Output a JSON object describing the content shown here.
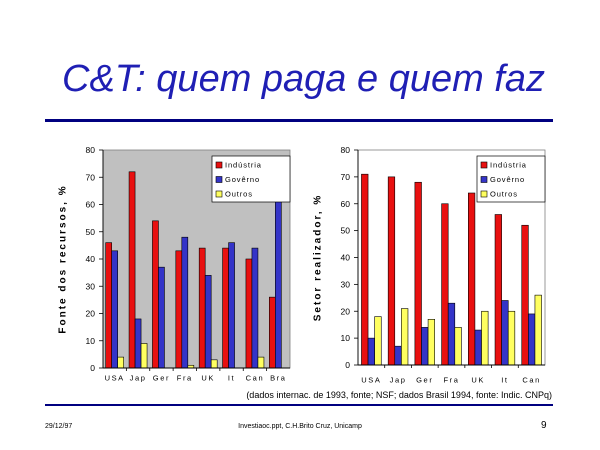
{
  "slide": {
    "title": "C&T: quem paga e quem faz",
    "caption": "(dados internac. de 1993, fonte; NSF; dados Brasil 1994, fonte: Indic. CNPq)",
    "footer": {
      "date": "29/12/97",
      "file": "Investiaoc.ppt, C.H.Brito Cruz, Unicamp",
      "page": "9"
    }
  },
  "colors": {
    "title": "#1f1fb4",
    "rule": "#000080"
  },
  "chart_data": [
    {
      "type": "bar",
      "ylabel": "Fonte dos recursos, %",
      "ylim": [
        0,
        80
      ],
      "yticks": [
        0,
        10,
        20,
        30,
        40,
        50,
        60,
        70,
        80
      ],
      "categories": [
        "USA",
        "Jap",
        "Ger",
        "Fra",
        "UK",
        "It",
        "Can",
        "Bra"
      ],
      "series": [
        {
          "name": "Indústria",
          "color": "#e81010",
          "values": [
            46,
            72,
            54,
            43,
            44,
            44,
            40,
            26
          ]
        },
        {
          "name": "Govêrno",
          "color": "#3434c8",
          "values": [
            43,
            18,
            37,
            48,
            34,
            46,
            44,
            74
          ]
        },
        {
          "name": "Outros",
          "color": "#ffff60",
          "values": [
            4,
            9,
            0,
            1,
            3,
            0,
            4,
            0
          ]
        }
      ],
      "legend": "top-right",
      "grid": false,
      "plot_background": "#c0c0c0"
    },
    {
      "type": "bar",
      "ylabel": "Setor realizador, %",
      "ylim": [
        0,
        80
      ],
      "yticks": [
        0,
        10,
        20,
        30,
        40,
        50,
        60,
        70,
        80
      ],
      "categories": [
        "USA",
        "Jap",
        "Ger",
        "Fra",
        "UK",
        "It",
        "Can"
      ],
      "series": [
        {
          "name": "Indústria",
          "color": "#e81010",
          "values": [
            71,
            70,
            68,
            60,
            64,
            56,
            52
          ]
        },
        {
          "name": "Govêrno",
          "color": "#3434c8",
          "values": [
            10,
            7,
            14,
            23,
            13,
            24,
            19
          ]
        },
        {
          "name": "Outros",
          "color": "#ffff60",
          "values": [
            18,
            21,
            17,
            14,
            20,
            20,
            26
          ]
        }
      ],
      "legend": "top-right",
      "grid": false,
      "plot_background": "#ffffff"
    }
  ]
}
